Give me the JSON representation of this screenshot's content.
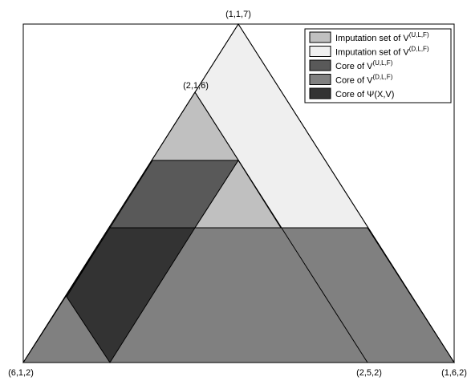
{
  "colors": {
    "background": "#ffffff",
    "frame": "#000000",
    "imputation_ulf": "#c0c0c0",
    "imputation_dlf": "#efefef",
    "core_ulf": "#595959",
    "core_dlf": "#808080",
    "core_psi": "#333333"
  },
  "vertices": {
    "top": "(1,1,7)",
    "left_bottom": "(6,1,2)",
    "right_bottom": "(1,6,2)",
    "inner_top": "(2,1,6)",
    "inner_bottom": "(2,5,2)"
  },
  "legend": {
    "items": [
      {
        "key": "imputation_ulf",
        "text": "Imputation set of V",
        "sup": "(U,L,F)"
      },
      {
        "key": "imputation_dlf",
        "text": "Imputation set of V",
        "sup": "(D,L,F)"
      },
      {
        "key": "core_ulf",
        "text": "Core of V",
        "sup": "(U,L,F)"
      },
      {
        "key": "core_dlf",
        "text": "Core of V",
        "sup": "(D,L,F)"
      },
      {
        "key": "core_psi",
        "text": "Core of Ψ(X,V)",
        "sup": ""
      }
    ]
  }
}
